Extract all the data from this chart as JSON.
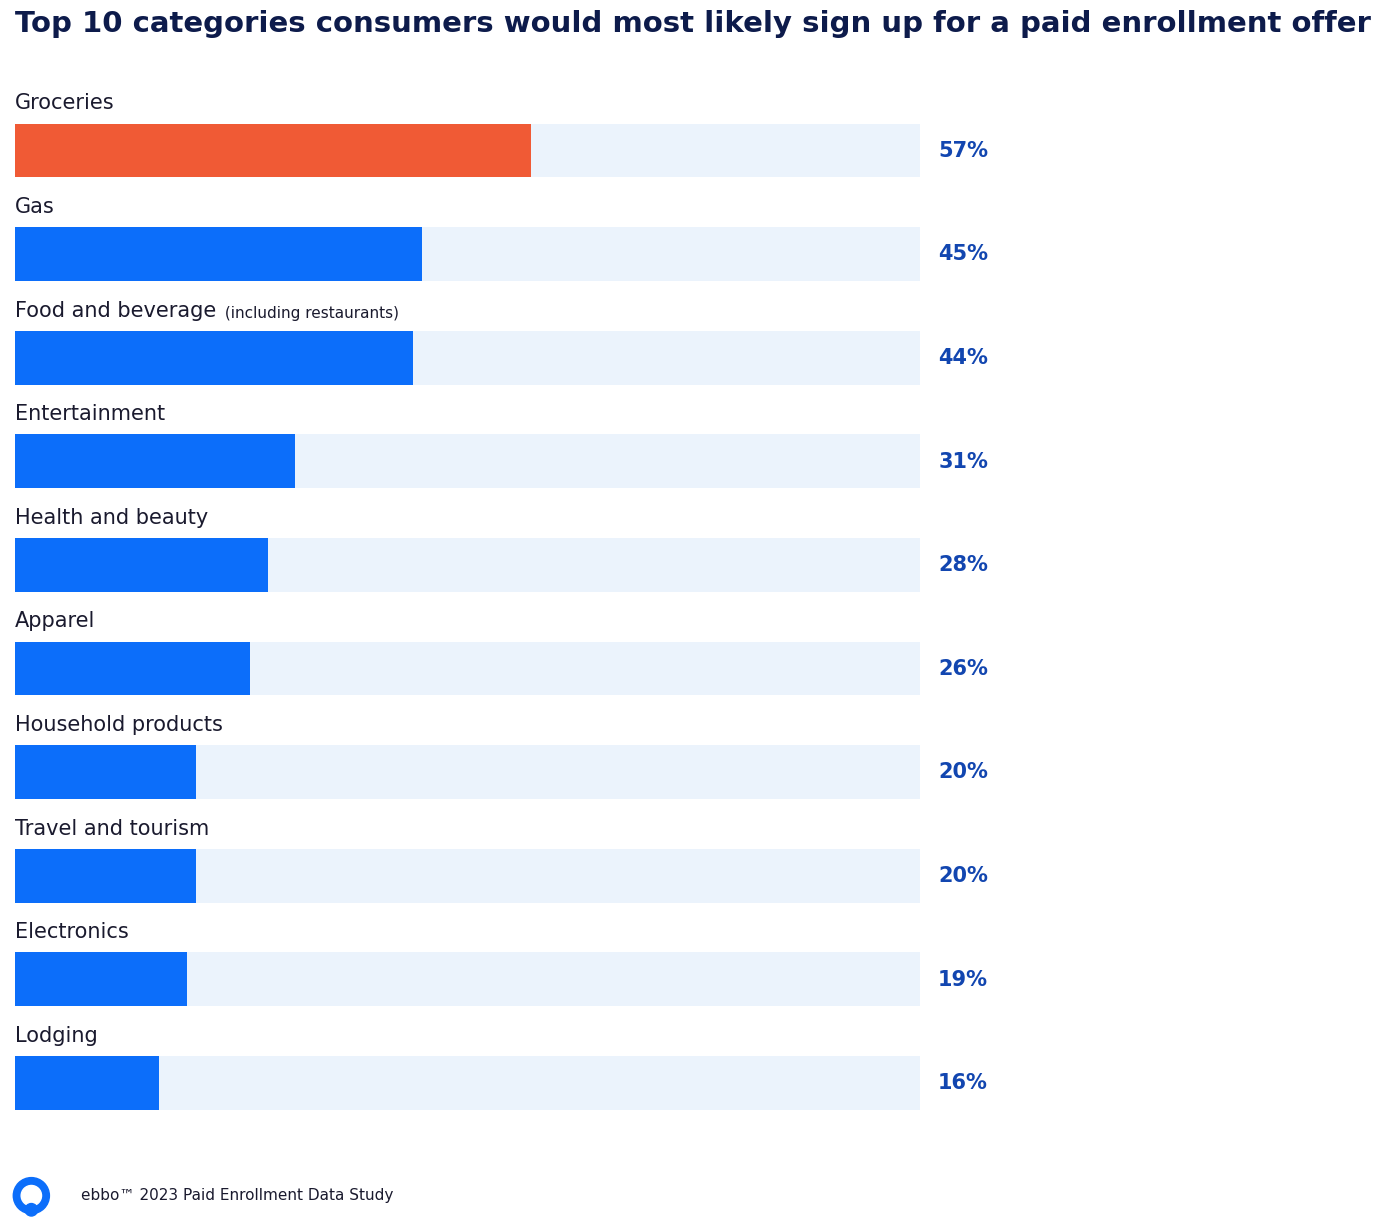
{
  "title": "Top 10 categories consumers would most likely sign up for a paid enrollment offer",
  "categories": [
    "Groceries",
    "Gas",
    "Food and beverage",
    "Entertainment",
    "Health and beauty",
    "Apparel",
    "Household products",
    "Travel and tourism",
    "Electronics",
    "Lodging"
  ],
  "category_suffixes": [
    "",
    "",
    " (including restaurants)",
    "",
    "",
    "",
    "",
    "",
    "",
    ""
  ],
  "values": [
    57,
    45,
    44,
    31,
    28,
    26,
    20,
    20,
    19,
    16
  ],
  "bar_colors": [
    "#F05A35",
    "#0C6EFA",
    "#0C6EFA",
    "#0C6EFA",
    "#0C6EFA",
    "#0C6EFA",
    "#0C6EFA",
    "#0C6EFA",
    "#0C6EFA",
    "#0C6EFA"
  ],
  "bg_bar_color": "#EBF3FC",
  "bar_height": 0.52,
  "max_value": 100,
  "value_color": "#1246B0",
  "title_color": "#0D1B4B",
  "label_color": "#1A1A2E",
  "label_fontsize": 15,
  "suffix_fontsize": 11,
  "value_fontsize": 15,
  "title_fontsize": 21,
  "footer_text": "ebbo™ 2023 Paid Enrollment Data Study",
  "background_color": "#FFFFFF"
}
